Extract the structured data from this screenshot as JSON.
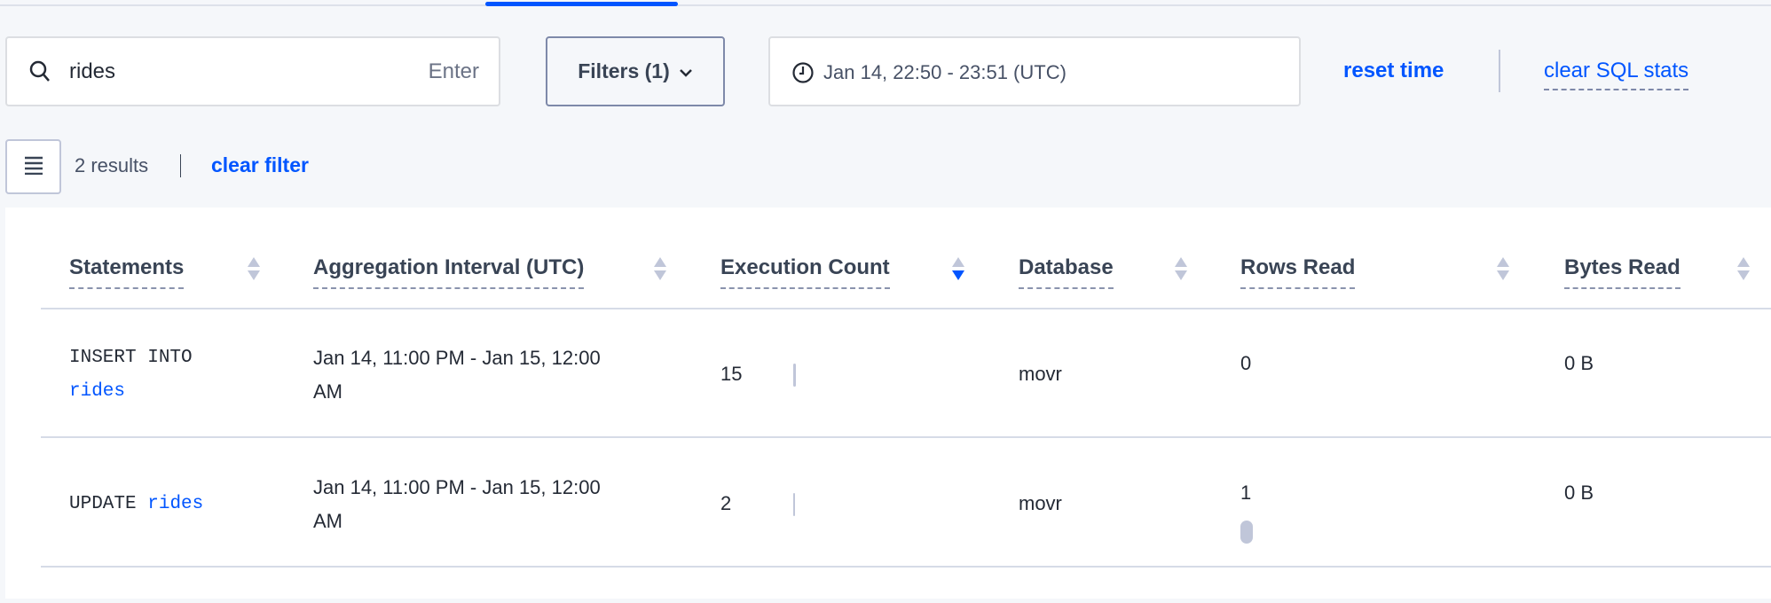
{
  "search": {
    "value": "rides",
    "hint": "Enter"
  },
  "filters": {
    "label": "Filters (1)"
  },
  "time_range": {
    "value": "Jan 14, 22:50 - 23:51 (UTC)"
  },
  "actions": {
    "reset_time": "reset time",
    "clear_sql_stats": "clear SQL stats"
  },
  "results": {
    "count": "2 results",
    "clear_filter": "clear filter"
  },
  "colors": {
    "accent": "#0055ff",
    "border": "#d6dbe7",
    "background": "#f5f7fa"
  },
  "table": {
    "columns": [
      {
        "label": "Statements",
        "sort": "none"
      },
      {
        "label": "Aggregation Interval (UTC)",
        "sort": "none"
      },
      {
        "label": "Execution Count",
        "sort": "descending"
      },
      {
        "label": "Database",
        "sort": "none"
      },
      {
        "label": "Rows Read",
        "sort": "none"
      },
      {
        "label": "Bytes Read",
        "sort": "none"
      }
    ],
    "rows": [
      {
        "statement_kw": "INSERT INTO",
        "statement_table": "rides",
        "interval_line1": "Jan 14, 11:00 PM - Jan 15, 12:00",
        "interval_line2": "AM",
        "execution_count": "15",
        "database": "movr",
        "rows_read": "0",
        "bytes_read": "0 B"
      },
      {
        "statement_kw": "UPDATE",
        "statement_table": "rides",
        "interval_line1": "Jan 14, 11:00 PM - Jan 15, 12:00",
        "interval_line2": "AM",
        "execution_count": "2",
        "database": "movr",
        "rows_read": "1",
        "bytes_read": "0 B"
      }
    ]
  }
}
